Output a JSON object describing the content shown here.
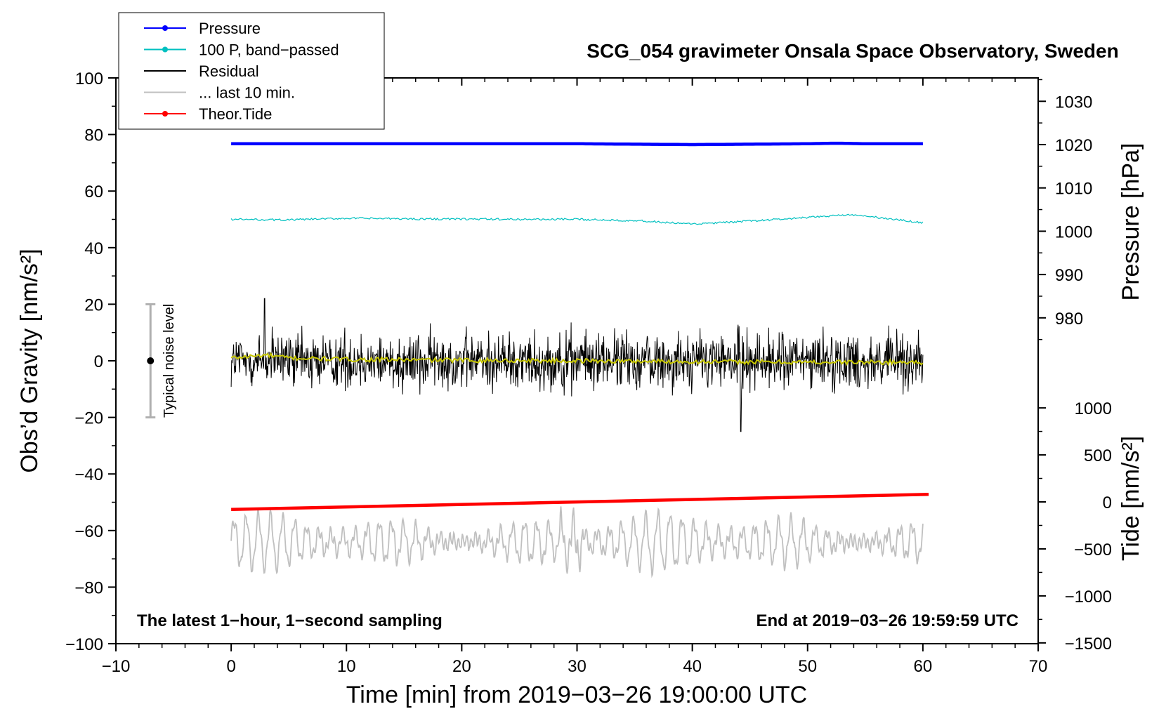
{
  "chart_data": {
    "type": "line",
    "title": "SCG_054 gravimeter Onsala Space Observatory, Sweden",
    "xlabel": "Time [min] from 2019−03−26 19:00:00 UTC",
    "ylabel_left": "Obs’d Gravity [nm/s²]",
    "ylabel_right_pressure": "Pressure [hPa]",
    "ylabel_right_tide": "Tide [nm/s²]",
    "xlim": [
      -10,
      70
    ],
    "ylim": [
      -100,
      100
    ],
    "x_ticks": [
      "−10",
      "0",
      "10",
      "20",
      "30",
      "40",
      "50",
      "60",
      "70"
    ],
    "y_ticks": [
      "−100",
      "−80",
      "−60",
      "−40",
      "−20",
      "0",
      "20",
      "40",
      "60",
      "80",
      "100"
    ],
    "pressure_ticks": [
      "980",
      "990",
      "1000",
      "1010",
      "1020",
      "1030"
    ],
    "tide_ticks": [
      "−1500",
      "−1000",
      "−500",
      "0",
      "500",
      "1000"
    ],
    "annotations": {
      "left": "The latest 1−hour, 1−second sampling",
      "right": "End at 2019−03−26 19:59:59 UTC",
      "noise_label": "Typical noise level"
    },
    "noise_bar": {
      "x": -7,
      "center": 0,
      "range": [
        -20,
        20
      ]
    },
    "legend": [
      {
        "label": "Pressure",
        "color": "#0000ff",
        "marker": true
      },
      {
        "label": "100 P, band−passed",
        "color": "#00c0c0",
        "marker": true
      },
      {
        "label": "Residual",
        "color": "#000000",
        "marker": false
      },
      {
        "label": "... last 10 min.",
        "color": "#c0c0c0",
        "marker": false
      },
      {
        "label": "Theor.Tide",
        "color": "#ff0000",
        "marker": true
      }
    ],
    "series": [
      {
        "name": "Pressure",
        "color": "#0000ff",
        "axis": "pressure_hPa",
        "x": [
          0,
          10,
          20,
          30,
          35,
          40,
          45,
          50,
          52,
          53,
          55,
          60
        ],
        "values": [
          1020.2,
          1020.2,
          1020.2,
          1020.2,
          1020.1,
          1020.0,
          1020.1,
          1020.2,
          1020.3,
          1020.3,
          1020.2,
          1020.2
        ]
      },
      {
        "name": "100 P, band−passed",
        "color": "#00c0c0",
        "axis": "gravity_nm_s2",
        "x": [
          0,
          5,
          10,
          15,
          20,
          25,
          30,
          35,
          38,
          40,
          42,
          45,
          50,
          53,
          55,
          57,
          60
        ],
        "values": [
          50,
          49.8,
          50.4,
          50.2,
          50.1,
          50.0,
          50.0,
          49.6,
          48.8,
          48.3,
          48.7,
          49.4,
          50.6,
          51.6,
          51.2,
          50.2,
          48.8
        ]
      },
      {
        "name": "Residual",
        "color": "#000000",
        "axis": "gravity_nm_s2",
        "x_range": [
          0,
          60
        ],
        "mean": 0,
        "approx_range": [
          -25,
          22
        ]
      },
      {
        "name": "Residual smoothed",
        "color": "#c8c800",
        "axis": "gravity_nm_s2",
        "x": [
          0,
          3,
          5,
          10,
          20,
          30,
          40,
          50,
          60
        ],
        "values": [
          1,
          2,
          1,
          0.5,
          0.2,
          0,
          -0.3,
          -0.5,
          -0.5
        ]
      },
      {
        "name": "... last 10 min.",
        "color": "#c0c0c0",
        "axis": "gravity_nm_s2",
        "x_range": [
          0,
          60
        ],
        "center": -64,
        "approx_range": [
          -78,
          -44
        ]
      },
      {
        "name": "Theor.Tide",
        "color": "#ff0000",
        "axis": "tide_nm_s2",
        "x": [
          0,
          60.5
        ],
        "values": [
          -80,
          80
        ]
      }
    ]
  }
}
